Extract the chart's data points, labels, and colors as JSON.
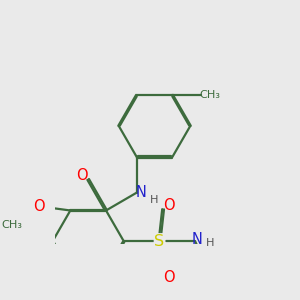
{
  "background_color": "#eaeaea",
  "bond_color": "#3d6b3d",
  "atom_colors": {
    "O": "#ff0000",
    "N": "#2222cc",
    "S": "#cccc00",
    "C": "#3d6b3d",
    "H": "#555555"
  },
  "line_width": 1.6,
  "font_size": 9.5,
  "figsize": [
    3.0,
    3.0
  ],
  "dpi": 100
}
